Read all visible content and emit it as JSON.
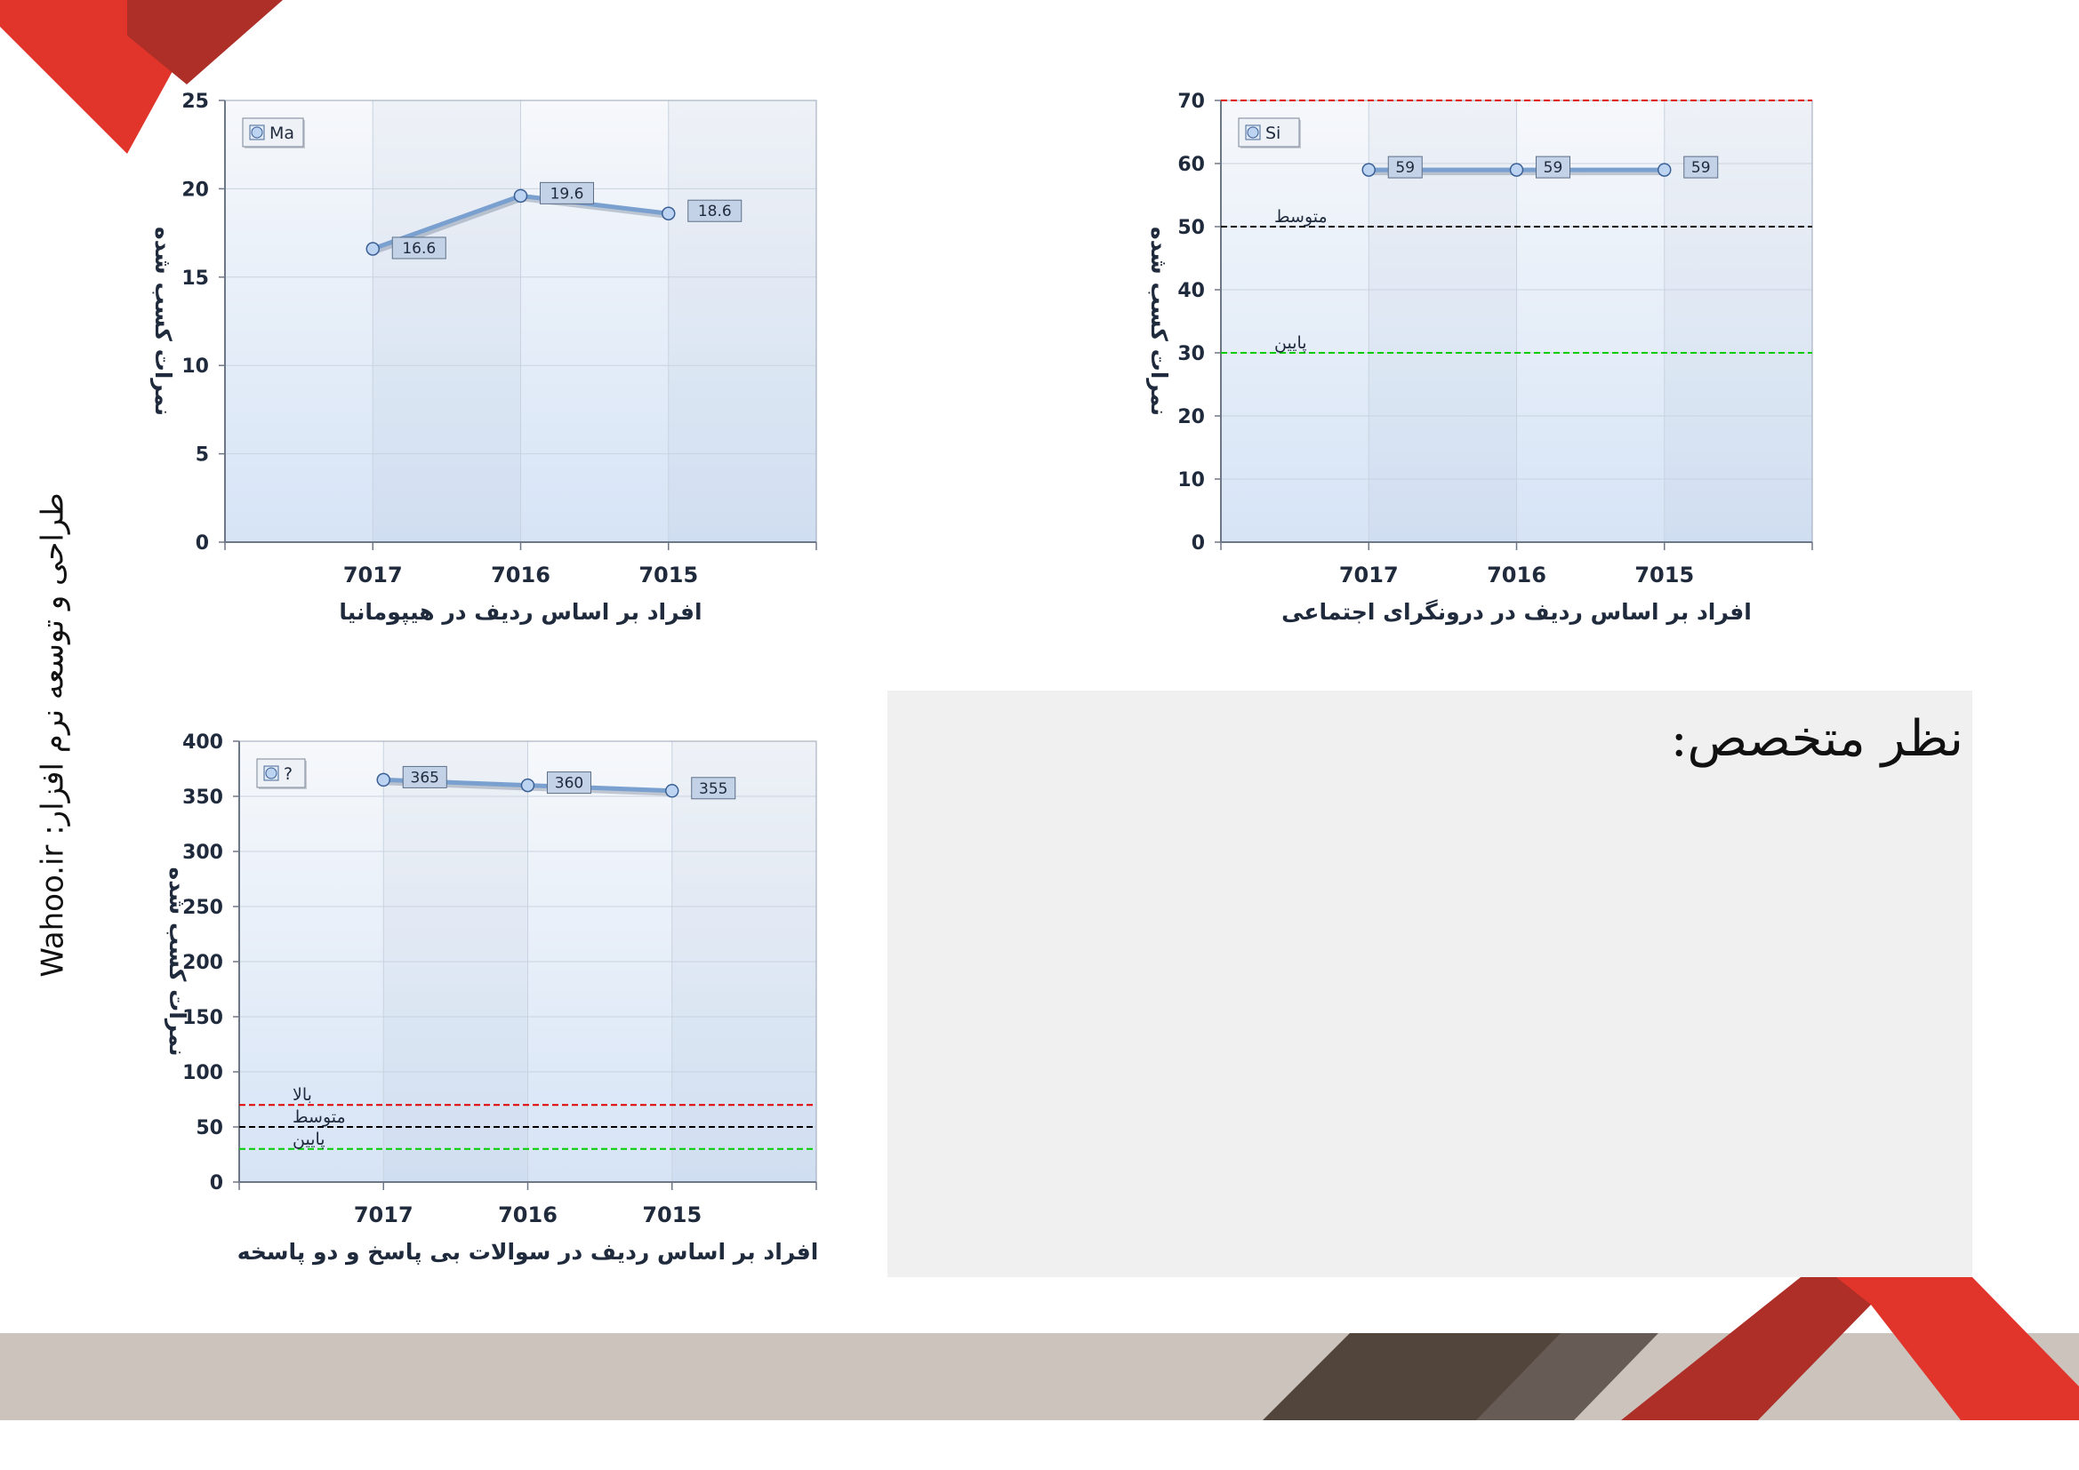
{
  "footer": {
    "credit": "طراحی و توسعه نرم افزار: Wahoo.ir"
  },
  "expert_panel": {
    "title": "نظر متخصص:"
  },
  "colors": {
    "accent_red": "#e1352b",
    "accent_dark_red": "#ad2f27",
    "footer_beige": "#cbc3bc",
    "footer_dark": "#51453c",
    "footer_grey": "#665c55",
    "line": "#7aa0d0",
    "marker": "#bcd3f2",
    "ref_high": "#e00000",
    "ref_mid": "#000000",
    "ref_low": "#00cc00"
  },
  "chart_data": [
    {
      "type": "line",
      "title": "",
      "xlabel": "افراد بر اساس ردیف در هیپومانیا",
      "ylabel": "نمرات کسب شده",
      "categories": [
        "7017",
        "7016",
        "7015"
      ],
      "series": [
        {
          "name": "Ma",
          "values": [
            16.6,
            19.6,
            18.6
          ]
        }
      ],
      "ylim": [
        0,
        25
      ],
      "yticks": [
        0,
        5,
        10,
        15,
        20,
        25
      ],
      "reference_lines": [],
      "grid": true,
      "legend": "top-left"
    },
    {
      "type": "line",
      "title": "",
      "xlabel": "افراد بر اساس ردیف در درونگرای اجتماعی",
      "ylabel": "نمرات کسب شده",
      "categories": [
        "7017",
        "7016",
        "7015"
      ],
      "series": [
        {
          "name": "Si",
          "values": [
            59,
            59,
            59
          ]
        }
      ],
      "ylim": [
        0,
        70
      ],
      "yticks": [
        0,
        10,
        20,
        30,
        40,
        50,
        60,
        70
      ],
      "reference_lines": [
        {
          "value": 70,
          "label": "",
          "color": "#e00000"
        },
        {
          "value": 50,
          "label": "متوسط",
          "color": "#000000"
        },
        {
          "value": 30,
          "label": "پایین",
          "color": "#00cc00"
        }
      ],
      "grid": true,
      "legend": "top-left"
    },
    {
      "type": "line",
      "title": "",
      "xlabel": "افراد بر اساس ردیف در سوالات بی پاسخ و دو پاسخه",
      "ylabel": "نمرات کسب شده",
      "categories": [
        "7017",
        "7016",
        "7015"
      ],
      "series": [
        {
          "name": "?",
          "values": [
            365,
            360,
            355
          ]
        }
      ],
      "ylim": [
        0,
        400
      ],
      "yticks": [
        0,
        50,
        100,
        150,
        200,
        250,
        300,
        350,
        400
      ],
      "reference_lines": [
        {
          "value": 70,
          "label": "بالا",
          "color": "#e00000"
        },
        {
          "value": 50,
          "label": "متوسط",
          "color": "#000000"
        },
        {
          "value": 30,
          "label": "پایین",
          "color": "#00cc00"
        }
      ],
      "grid": true,
      "legend": "top-left"
    }
  ]
}
